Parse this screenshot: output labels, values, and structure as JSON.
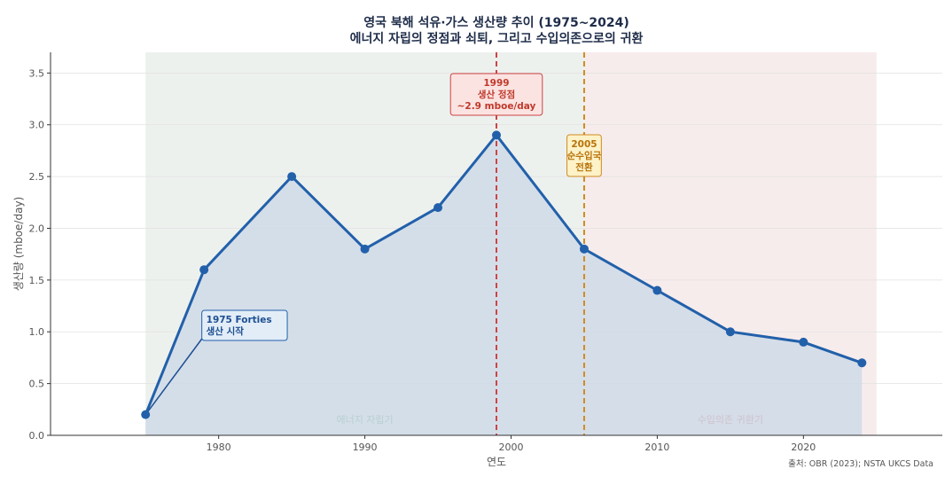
{
  "chart_data": {
    "type": "area",
    "title": "영국 북해 석유·가스 생산량 추이 (1975~2024)",
    "subtitle": "에너지 자립의 정점과 쇠퇴, 그리고 수입의존으로의 귀환",
    "xlabel": "연도",
    "ylabel": "생산량 (mboe/day)",
    "xlim": [
      1968.5,
      2029.5
    ],
    "ylim": [
      0,
      3.7
    ],
    "x_ticks": [
      1980,
      1990,
      2000,
      2010,
      2020
    ],
    "y_ticks": [
      0.0,
      0.5,
      1.0,
      1.5,
      2.0,
      2.5,
      3.0,
      3.5
    ],
    "grid": true,
    "series": [
      {
        "x": [
          1975,
          1979,
          1985,
          1990,
          1995,
          1999,
          2005,
          2010,
          2015,
          2020,
          2024
        ],
        "y": [
          0.2,
          1.6,
          2.5,
          1.8,
          2.2,
          2.9,
          1.8,
          1.4,
          1.0,
          0.9,
          0.7
        ],
        "color": "#2260aa",
        "fill": "#cfdbe7"
      }
    ],
    "regions": [
      {
        "from": 1975,
        "to": 2005,
        "label": "에너지 자립기",
        "color": "#edf1ee",
        "text_color": "#2e8b4e"
      },
      {
        "from": 2005,
        "to": 2025,
        "label": "수입의존 귀환기",
        "color": "#f7ecec",
        "text_color": "#c0392b"
      }
    ],
    "vlines": [
      {
        "x": 1999,
        "color": "#cc4444",
        "label": [
          "1999",
          "생산 정점",
          "~2.9 mboe/day"
        ],
        "box_fill": "#fbe3e1",
        "box_stroke": "#cc4444",
        "text_color": "#c0392b"
      },
      {
        "x": 2005,
        "color": "#d08a20",
        "label": [
          "2005",
          "순수입국",
          "전환"
        ],
        "box_fill": "#fdf2c8",
        "box_stroke": "#d08a20",
        "text_color": "#b8730a"
      }
    ],
    "annotations": [
      {
        "text": [
          "1975 Forties",
          "생산 시작"
        ],
        "point": [
          1975,
          0.2
        ],
        "anchor": [
          1980,
          1.0
        ],
        "box_fill": "#e2edf8",
        "box_stroke": "#2260aa",
        "text_color": "#1d4f91"
      }
    ],
    "source": "출처: OBR (2023); NSTA UKCS Data"
  }
}
